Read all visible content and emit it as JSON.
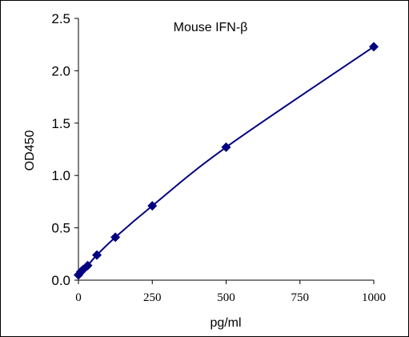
{
  "chart_data": {
    "type": "scatter",
    "title": "Mouse IFN-β",
    "xlabel": "pg/ml",
    "ylabel": "OD450",
    "xlim": [
      0,
      1000
    ],
    "ylim": [
      0,
      2.5
    ],
    "x_ticks": [
      "0",
      "250",
      "500",
      "750",
      "1000"
    ],
    "y_ticks": [
      "0.0",
      "0.5",
      "1.0",
      "1.5",
      "2.0",
      "2.5"
    ],
    "grid": false,
    "legend": "none",
    "series": [
      {
        "x": [
          0,
          7.8,
          15.6,
          31.25,
          62.5,
          125,
          250,
          500,
          1000
        ],
        "y": [
          0.05,
          0.08,
          0.1,
          0.14,
          0.24,
          0.41,
          0.71,
          1.27,
          2.23
        ],
        "marker": "diamond",
        "fit_line": "smooth"
      }
    ],
    "colors": {
      "series": "#000080",
      "axis": "#000000"
    }
  }
}
